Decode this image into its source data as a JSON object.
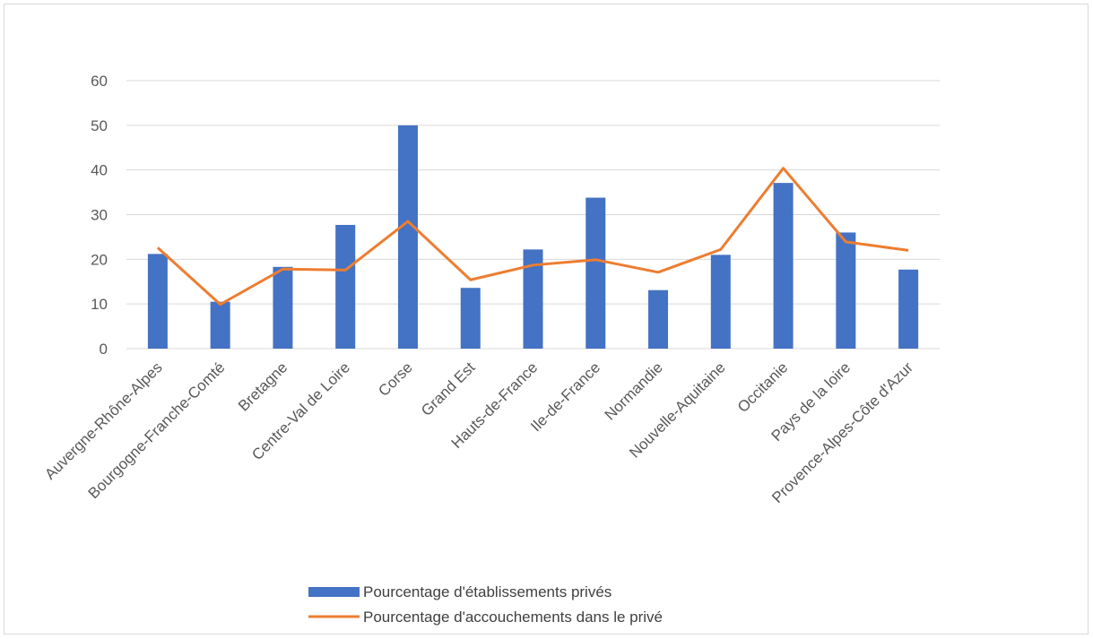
{
  "chart_data": {
    "type": "bar",
    "categories": [
      "Auvergne-Rhône-Alpes",
      "Bourgogne-Franche-Comté",
      "Bretagne",
      "Centre-Val de Loire",
      "Corse",
      "Grand Est",
      "Hauts-de-France",
      "Ile-de-France",
      "Normandie",
      "Nouvelle-Aquitaine",
      "Occitanie",
      "Pays de la loire",
      "Provence-Alpes-Côte d'Azur"
    ],
    "series": [
      {
        "name": "Pourcentage d'établissements privés",
        "type": "bar",
        "color": "#4472c4",
        "values": [
          21.2,
          10.5,
          18.3,
          27.7,
          50.0,
          13.6,
          22.2,
          33.8,
          13.1,
          21.0,
          37.1,
          26.0,
          17.7
        ]
      },
      {
        "name": "Pourcentage d'accouchements dans le privé",
        "type": "line",
        "color": "#ed7d31",
        "values": [
          22.6,
          9.9,
          17.8,
          17.6,
          28.5,
          15.4,
          18.7,
          19.9,
          17.1,
          22.2,
          40.4,
          23.9,
          22.0
        ]
      }
    ],
    "ylim": [
      0,
      60
    ],
    "yticks": [
      0,
      10,
      20,
      30,
      40,
      50,
      60
    ],
    "grid": true,
    "legend_position": "bottom"
  }
}
